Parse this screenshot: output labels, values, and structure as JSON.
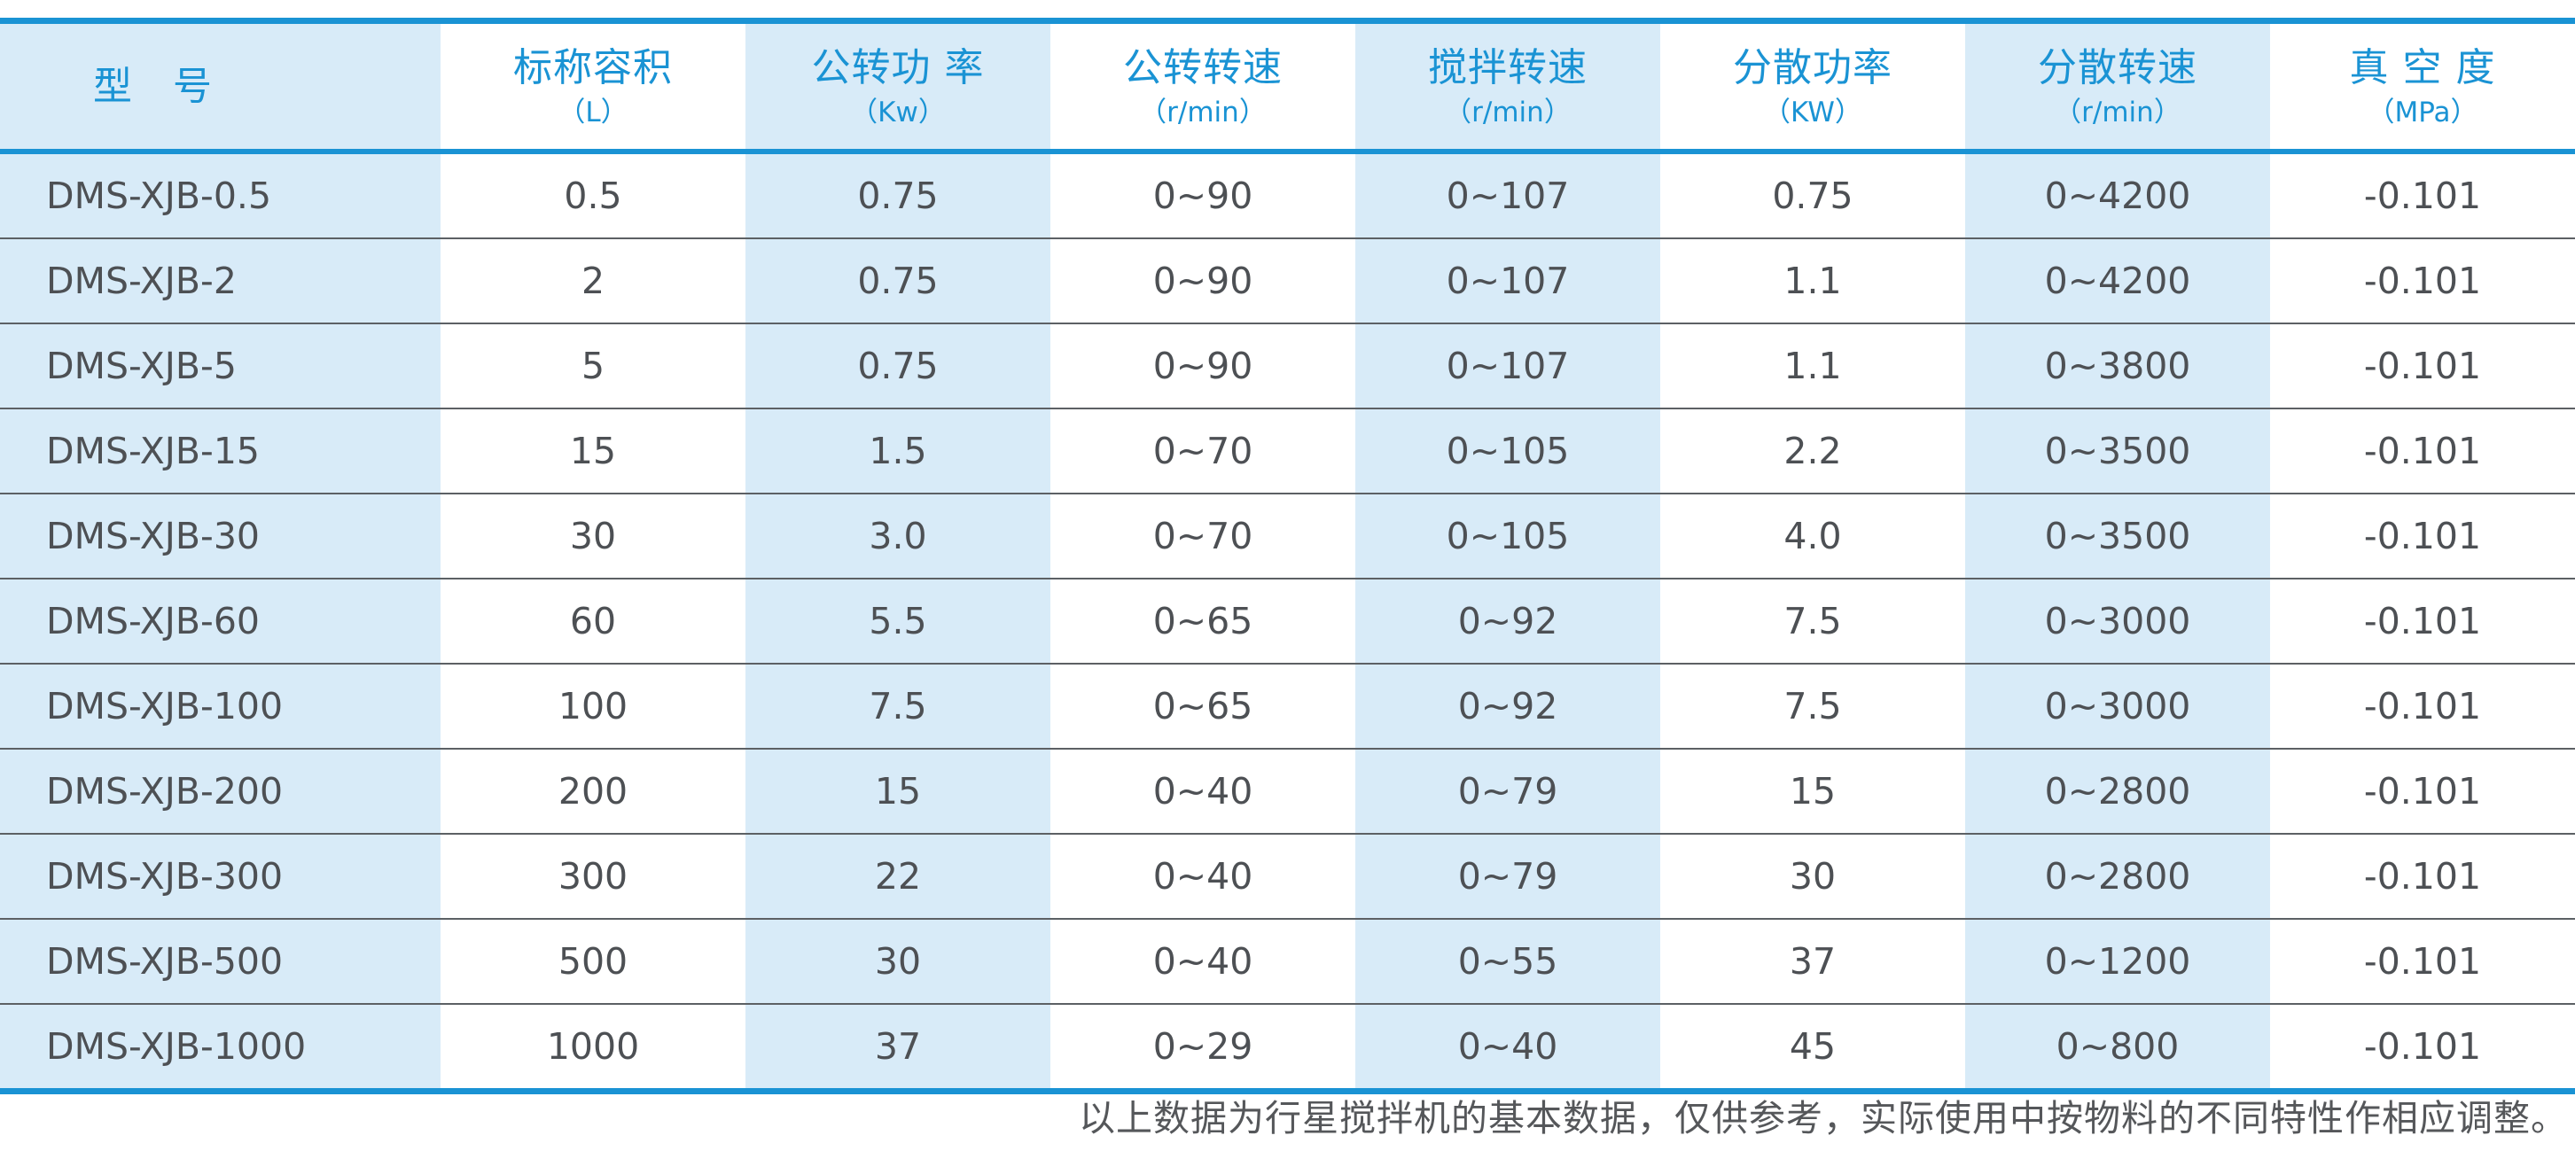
{
  "colors": {
    "accent_blue": "#1a93d4",
    "stripe_light_blue": "#d8ebf8",
    "body_text_gray": "#4d5054",
    "row_divider_gray": "#5c6064",
    "footnote_gray": "#55575a"
  },
  "table": {
    "columns": [
      {
        "title": "型　号",
        "unit": ""
      },
      {
        "title": "标称容积",
        "unit": "（L）"
      },
      {
        "title": "公转功 率",
        "unit": "（Kw）"
      },
      {
        "title": "公转转速",
        "unit": "（r/min）"
      },
      {
        "title": "搅拌转速",
        "unit": "（r/min）"
      },
      {
        "title": "分散功率",
        "unit": "（KW）"
      },
      {
        "title": "分散转速",
        "unit": "（r/min）"
      },
      {
        "title": "真 空 度",
        "unit": "（MPa）"
      }
    ],
    "rows": [
      [
        "DMS-XJB-0.5",
        "0.5",
        "0.75",
        "0~90",
        "0~107",
        "0.75",
        "0~4200",
        "-0.101"
      ],
      [
        "DMS-XJB-2",
        "2",
        "0.75",
        "0~90",
        "0~107",
        "1.1",
        "0~4200",
        "-0.101"
      ],
      [
        "DMS-XJB-5",
        "5",
        "0.75",
        "0~90",
        "0~107",
        "1.1",
        "0~3800",
        "-0.101"
      ],
      [
        "DMS-XJB-15",
        "15",
        "1.5",
        "0~70",
        "0~105",
        "2.2",
        "0~3500",
        "-0.101"
      ],
      [
        "DMS-XJB-30",
        "30",
        "3.0",
        "0~70",
        "0~105",
        "4.0",
        "0~3500",
        "-0.101"
      ],
      [
        "DMS-XJB-60",
        "60",
        "5.5",
        "0~65",
        "0~92",
        "7.5",
        "0~3000",
        "-0.101"
      ],
      [
        "DMS-XJB-100",
        "100",
        "7.5",
        "0~65",
        "0~92",
        "7.5",
        "0~3000",
        "-0.101"
      ],
      [
        "DMS-XJB-200",
        "200",
        "15",
        "0~40",
        "0~79",
        "15",
        "0~2800",
        "-0.101"
      ],
      [
        "DMS-XJB-300",
        "300",
        "22",
        "0~40",
        "0~79",
        "30",
        "0~2800",
        "-0.101"
      ],
      [
        "DMS-XJB-500",
        "500",
        "30",
        "0~40",
        "0~55",
        "37",
        "0~1200",
        "-0.101"
      ],
      [
        "DMS-XJB-1000",
        "1000",
        "37",
        "0~29",
        "0~40",
        "45",
        "0~800",
        "-0.101"
      ]
    ]
  },
  "footer": {
    "note": "以上数据为行星搅拌机的基本数据，仅供参考，实际使用中按物料的不同特性作相应调整。"
  }
}
